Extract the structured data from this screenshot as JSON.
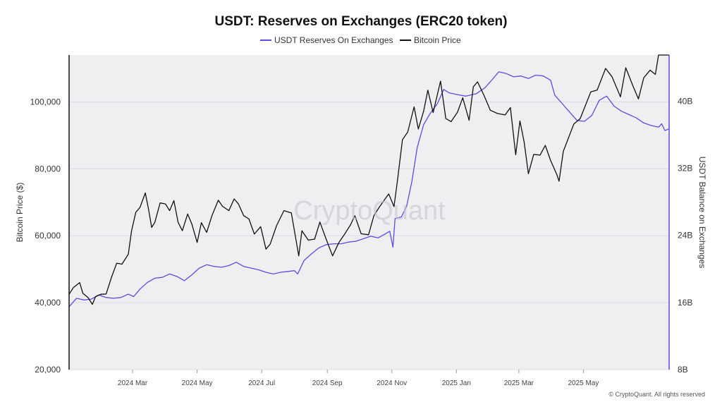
{
  "chart_data": {
    "type": "line",
    "title": "USDT: Reserves on Exchanges (ERC20 token)",
    "legend": [
      {
        "name": "USDT Reserves On Exchanges",
        "color": "#5b4ce0"
      },
      {
        "name": "Bitcoin Price",
        "color": "#111111"
      }
    ],
    "legend_placement": "top-center",
    "watermark": "CryptoQuant",
    "copyright": "© CryptoQuant. All rights reserved",
    "x_ticks": [
      "2024 Mar",
      "2024 May",
      "2024 Jul",
      "2024 Sep",
      "2024 Nov",
      "2025 Jan",
      "2025 Mar",
      "2025 May"
    ],
    "x_range": [
      "2024-01-01",
      "2025-07-21"
    ],
    "y_left": {
      "label": "Bitcoin Price ($)",
      "ticks": [
        "20,000",
        "40,000",
        "60,000",
        "80,000",
        "100,000"
      ],
      "range": [
        20000,
        114000
      ]
    },
    "y_right": {
      "label": "USDT Balance on Exchanges",
      "ticks": [
        "8B",
        "16B",
        "24B",
        "32B",
        "40B"
      ],
      "range": [
        8,
        45.5
      ],
      "unit": "billion USDT"
    },
    "grid": "horizontal",
    "series": [
      {
        "name": "Bitcoin Price",
        "axis": "left",
        "color": "#111111",
        "points": [
          [
            "2024-01-01",
            42500
          ],
          [
            "2024-01-05",
            44500
          ],
          [
            "2024-01-11",
            46000
          ],
          [
            "2024-01-14",
            42800
          ],
          [
            "2024-01-19",
            41500
          ],
          [
            "2024-01-23",
            39500
          ],
          [
            "2024-01-26",
            41800
          ],
          [
            "2024-01-31",
            42500
          ],
          [
            "2024-02-05",
            42600
          ],
          [
            "2024-02-10",
            47500
          ],
          [
            "2024-02-15",
            51800
          ],
          [
            "2024-02-20",
            51500
          ],
          [
            "2024-02-26",
            54500
          ],
          [
            "2024-02-29",
            61500
          ],
          [
            "2024-03-04",
            67000
          ],
          [
            "2024-03-08",
            68500
          ],
          [
            "2024-03-13",
            72800
          ],
          [
            "2024-03-16",
            68000
          ],
          [
            "2024-03-19",
            62500
          ],
          [
            "2024-03-22",
            64000
          ],
          [
            "2024-03-27",
            69800
          ],
          [
            "2024-04-01",
            69500
          ],
          [
            "2024-04-05",
            67500
          ],
          [
            "2024-04-09",
            70500
          ],
          [
            "2024-04-13",
            64000
          ],
          [
            "2024-04-17",
            61500
          ],
          [
            "2024-04-22",
            66500
          ],
          [
            "2024-04-26",
            63500
          ],
          [
            "2024-05-01",
            58000
          ],
          [
            "2024-05-05",
            63900
          ],
          [
            "2024-05-10",
            61000
          ],
          [
            "2024-05-15",
            66000
          ],
          [
            "2024-05-21",
            70600
          ],
          [
            "2024-05-25",
            68800
          ],
          [
            "2024-05-31",
            67500
          ],
          [
            "2024-06-05",
            71000
          ],
          [
            "2024-06-09",
            69500
          ],
          [
            "2024-06-14",
            66000
          ],
          [
            "2024-06-19",
            65000
          ],
          [
            "2024-06-24",
            60500
          ],
          [
            "2024-06-30",
            62700
          ],
          [
            "2024-07-05",
            56000
          ],
          [
            "2024-07-09",
            57500
          ],
          [
            "2024-07-15",
            63000
          ],
          [
            "2024-07-22",
            67500
          ],
          [
            "2024-07-29",
            66800
          ],
          [
            "2024-08-05",
            54000
          ],
          [
            "2024-08-08",
            61500
          ],
          [
            "2024-08-14",
            58700
          ],
          [
            "2024-08-20",
            59000
          ],
          [
            "2024-08-25",
            64100
          ],
          [
            "2024-08-31",
            58900
          ],
          [
            "2024-09-06",
            54000
          ],
          [
            "2024-09-12",
            58000
          ],
          [
            "2024-09-17",
            60300
          ],
          [
            "2024-09-23",
            63300
          ],
          [
            "2024-09-27",
            66000
          ],
          [
            "2024-10-03",
            60600
          ],
          [
            "2024-10-10",
            60300
          ],
          [
            "2024-10-15",
            66000
          ],
          [
            "2024-10-20",
            68500
          ],
          [
            "2024-10-29",
            72500
          ],
          [
            "2024-11-03",
            68700
          ],
          [
            "2024-11-06",
            75800
          ],
          [
            "2024-11-11",
            88700
          ],
          [
            "2024-11-16",
            91000
          ],
          [
            "2024-11-22",
            98500
          ],
          [
            "2024-11-26",
            91900
          ],
          [
            "2024-12-01",
            97200
          ],
          [
            "2024-12-05",
            103500
          ],
          [
            "2024-12-10",
            96800
          ],
          [
            "2024-12-17",
            106200
          ],
          [
            "2024-12-22",
            95000
          ],
          [
            "2024-12-27",
            94100
          ],
          [
            "2025-01-02",
            96900
          ],
          [
            "2025-01-07",
            101200
          ],
          [
            "2025-01-13",
            94500
          ],
          [
            "2025-01-17",
            104500
          ],
          [
            "2025-01-21",
            106000
          ],
          [
            "2025-01-27",
            102000
          ],
          [
            "2025-02-02",
            97500
          ],
          [
            "2025-02-09",
            96500
          ],
          [
            "2025-02-16",
            96100
          ],
          [
            "2025-02-21",
            98300
          ],
          [
            "2025-02-26",
            84200
          ],
          [
            "2025-03-02",
            94300
          ],
          [
            "2025-03-06",
            88000
          ],
          [
            "2025-03-10",
            78500
          ],
          [
            "2025-03-15",
            84300
          ],
          [
            "2025-03-21",
            84100
          ],
          [
            "2025-03-26",
            87000
          ],
          [
            "2025-03-31",
            82500
          ],
          [
            "2025-04-06",
            78200
          ],
          [
            "2025-04-08",
            76300
          ],
          [
            "2025-04-12",
            85200
          ],
          [
            "2025-04-22",
            93400
          ],
          [
            "2025-04-28",
            95000
          ],
          [
            "2025-05-08",
            103000
          ],
          [
            "2025-05-14",
            103500
          ],
          [
            "2025-05-22",
            110000
          ],
          [
            "2025-05-28",
            107500
          ],
          [
            "2025-06-05",
            101500
          ],
          [
            "2025-06-10",
            110200
          ],
          [
            "2025-06-17",
            104600
          ],
          [
            "2025-06-22",
            100900
          ],
          [
            "2025-06-27",
            107200
          ],
          [
            "2025-07-03",
            109500
          ],
          [
            "2025-07-08",
            108200
          ],
          [
            "2025-07-11",
            117500
          ],
          [
            "2025-07-17",
            119200
          ],
          [
            "2025-07-21",
            118000
          ]
        ]
      },
      {
        "name": "USDT Reserves On Exchanges",
        "axis": "right",
        "color": "#5b4ce0",
        "points": [
          [
            "2024-01-01",
            15.5
          ],
          [
            "2024-01-08",
            16.5
          ],
          [
            "2024-01-15",
            16.3
          ],
          [
            "2024-01-22",
            16.4
          ],
          [
            "2024-01-29",
            16.9
          ],
          [
            "2024-02-05",
            16.6
          ],
          [
            "2024-02-12",
            16.5
          ],
          [
            "2024-02-19",
            16.6
          ],
          [
            "2024-02-26",
            17.0
          ],
          [
            "2024-03-02",
            16.7
          ],
          [
            "2024-03-08",
            17.6
          ],
          [
            "2024-03-15",
            18.4
          ],
          [
            "2024-03-22",
            18.9
          ],
          [
            "2024-03-29",
            19.0
          ],
          [
            "2024-04-05",
            19.4
          ],
          [
            "2024-04-12",
            19.1
          ],
          [
            "2024-04-19",
            18.6
          ],
          [
            "2024-04-26",
            19.3
          ],
          [
            "2024-05-03",
            20.1
          ],
          [
            "2024-05-10",
            20.5
          ],
          [
            "2024-05-17",
            20.3
          ],
          [
            "2024-05-24",
            20.2
          ],
          [
            "2024-05-31",
            20.4
          ],
          [
            "2024-06-07",
            20.8
          ],
          [
            "2024-06-14",
            20.3
          ],
          [
            "2024-06-21",
            20.1
          ],
          [
            "2024-06-28",
            19.9
          ],
          [
            "2024-07-05",
            19.6
          ],
          [
            "2024-07-12",
            19.4
          ],
          [
            "2024-07-19",
            19.6
          ],
          [
            "2024-07-26",
            19.7
          ],
          [
            "2024-08-01",
            19.8
          ],
          [
            "2024-08-04",
            19.4
          ],
          [
            "2024-08-10",
            21.0
          ],
          [
            "2024-08-17",
            21.8
          ],
          [
            "2024-08-24",
            22.5
          ],
          [
            "2024-08-31",
            22.9
          ],
          [
            "2024-09-07",
            23.0
          ],
          [
            "2024-09-14",
            23.0
          ],
          [
            "2024-09-21",
            23.2
          ],
          [
            "2024-09-28",
            23.3
          ],
          [
            "2024-10-05",
            23.6
          ],
          [
            "2024-10-12",
            23.9
          ],
          [
            "2024-10-19",
            23.7
          ],
          [
            "2024-10-26",
            24.2
          ],
          [
            "2024-10-30",
            24.5
          ],
          [
            "2024-11-02",
            22.6
          ],
          [
            "2024-11-04",
            26.0
          ],
          [
            "2024-11-10",
            26.2
          ],
          [
            "2024-11-15",
            27.5
          ],
          [
            "2024-11-20",
            30.5
          ],
          [
            "2024-11-25",
            34.5
          ],
          [
            "2024-12-01",
            37.2
          ],
          [
            "2024-12-07",
            38.5
          ],
          [
            "2024-12-14",
            39.7
          ],
          [
            "2024-12-20",
            41.4
          ],
          [
            "2024-12-25",
            41.0
          ],
          [
            "2025-01-01",
            40.8
          ],
          [
            "2025-01-10",
            40.6
          ],
          [
            "2025-01-20",
            40.9
          ],
          [
            "2025-01-28",
            41.6
          ],
          [
            "2025-02-04",
            42.6
          ],
          [
            "2025-02-10",
            43.5
          ],
          [
            "2025-02-17",
            43.3
          ],
          [
            "2025-02-24",
            42.9
          ],
          [
            "2025-03-03",
            43.0
          ],
          [
            "2025-03-10",
            42.7
          ],
          [
            "2025-03-17",
            43.1
          ],
          [
            "2025-03-24",
            43.0
          ],
          [
            "2025-03-31",
            42.5
          ],
          [
            "2025-04-04",
            40.7
          ],
          [
            "2025-04-11",
            39.7
          ],
          [
            "2025-04-18",
            38.7
          ],
          [
            "2025-04-25",
            37.7
          ],
          [
            "2025-05-02",
            37.6
          ],
          [
            "2025-05-09",
            38.3
          ],
          [
            "2025-05-16",
            40.1
          ],
          [
            "2025-05-23",
            40.6
          ],
          [
            "2025-05-30",
            39.4
          ],
          [
            "2025-06-06",
            38.8
          ],
          [
            "2025-06-13",
            38.4
          ],
          [
            "2025-06-20",
            38.0
          ],
          [
            "2025-06-27",
            37.4
          ],
          [
            "2025-07-04",
            37.1
          ],
          [
            "2025-07-11",
            36.9
          ],
          [
            "2025-07-14",
            37.3
          ],
          [
            "2025-07-17",
            36.5
          ],
          [
            "2025-07-21",
            36.7
          ]
        ]
      }
    ]
  }
}
